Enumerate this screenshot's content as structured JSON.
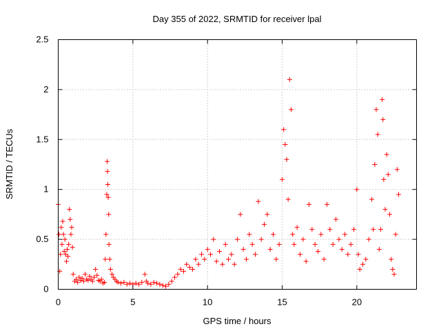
{
  "chart_data": {
    "type": "scatter",
    "title": "Day 355 of 2022, SRMTID for receiver lpal",
    "xlabel": "GPS time / hours",
    "ylabel": "SRMTID / TECUs",
    "xlim": [
      0,
      24
    ],
    "ylim": [
      0,
      2.5
    ],
    "xticks": [
      0,
      5,
      10,
      15,
      20
    ],
    "xtick_labels": [
      "0",
      "5",
      "10",
      "15",
      "20"
    ],
    "yticks": [
      0,
      0.5,
      1,
      1.5,
      2,
      2.5
    ],
    "ytick_labels": [
      "0",
      "0.5",
      "1",
      "1.5",
      "2",
      "2.5"
    ],
    "grid": true,
    "marker": "+",
    "color": "#ff0000",
    "series": [
      {
        "name": "SRMTID",
        "points": [
          [
            0.0,
            0.85
          ],
          [
            0.05,
            0.55
          ],
          [
            0.1,
            0.18
          ],
          [
            0.15,
            0.35
          ],
          [
            0.2,
            0.62
          ],
          [
            0.25,
            0.45
          ],
          [
            0.3,
            0.68
          ],
          [
            0.35,
            0.55
          ],
          [
            0.4,
            0.38
          ],
          [
            0.45,
            0.5
          ],
          [
            0.5,
            0.35
          ],
          [
            0.55,
            0.28
          ],
          [
            0.6,
            0.4
          ],
          [
            0.65,
            0.33
          ],
          [
            0.7,
            0.45
          ],
          [
            0.75,
            0.8
          ],
          [
            0.8,
            0.7
          ],
          [
            0.85,
            0.55
          ],
          [
            0.9,
            0.62
          ],
          [
            0.95,
            0.42
          ],
          [
            1.0,
            0.15
          ],
          [
            1.1,
            0.08
          ],
          [
            1.2,
            0.1
          ],
          [
            1.3,
            0.07
          ],
          [
            1.4,
            0.12
          ],
          [
            1.5,
            0.09
          ],
          [
            1.6,
            0.11
          ],
          [
            1.7,
            0.08
          ],
          [
            1.8,
            0.15
          ],
          [
            1.9,
            0.1
          ],
          [
            2.0,
            0.09
          ],
          [
            2.1,
            0.13
          ],
          [
            2.2,
            0.1
          ],
          [
            2.3,
            0.08
          ],
          [
            2.4,
            0.12
          ],
          [
            2.5,
            0.2
          ],
          [
            2.6,
            0.14
          ],
          [
            2.7,
            0.09
          ],
          [
            2.8,
            0.08
          ],
          [
            2.9,
            0.1
          ],
          [
            3.0,
            0.06
          ],
          [
            3.1,
            0.07
          ],
          [
            3.15,
            0.3
          ],
          [
            3.2,
            0.55
          ],
          [
            3.25,
            0.95
          ],
          [
            3.28,
            1.28
          ],
          [
            3.3,
            1.18
          ],
          [
            3.32,
            1.05
          ],
          [
            3.35,
            0.92
          ],
          [
            3.38,
            0.75
          ],
          [
            3.4,
            0.45
          ],
          [
            3.45,
            0.3
          ],
          [
            3.5,
            0.2
          ],
          [
            3.6,
            0.15
          ],
          [
            3.7,
            0.12
          ],
          [
            3.8,
            0.1
          ],
          [
            3.9,
            0.08
          ],
          [
            4.0,
            0.07
          ],
          [
            4.2,
            0.06
          ],
          [
            4.4,
            0.07
          ],
          [
            4.6,
            0.05
          ],
          [
            4.8,
            0.06
          ],
          [
            5.0,
            0.05
          ],
          [
            5.2,
            0.06
          ],
          [
            5.4,
            0.05
          ],
          [
            5.6,
            0.07
          ],
          [
            5.8,
            0.15
          ],
          [
            5.9,
            0.08
          ],
          [
            6.0,
            0.06
          ],
          [
            6.2,
            0.05
          ],
          [
            6.4,
            0.07
          ],
          [
            6.6,
            0.06
          ],
          [
            6.8,
            0.05
          ],
          [
            7.0,
            0.04
          ],
          [
            7.2,
            0.03
          ],
          [
            7.4,
            0.05
          ],
          [
            7.6,
            0.08
          ],
          [
            7.8,
            0.12
          ],
          [
            8.0,
            0.15
          ],
          [
            8.2,
            0.2
          ],
          [
            8.4,
            0.18
          ],
          [
            8.6,
            0.25
          ],
          [
            8.8,
            0.22
          ],
          [
            9.0,
            0.2
          ],
          [
            9.2,
            0.3
          ],
          [
            9.4,
            0.25
          ],
          [
            9.6,
            0.35
          ],
          [
            9.8,
            0.3
          ],
          [
            10.0,
            0.4
          ],
          [
            10.2,
            0.35
          ],
          [
            10.4,
            0.5
          ],
          [
            10.6,
            0.28
          ],
          [
            10.8,
            0.38
          ],
          [
            11.0,
            0.25
          ],
          [
            11.2,
            0.45
          ],
          [
            11.4,
            0.3
          ],
          [
            11.6,
            0.35
          ],
          [
            11.8,
            0.25
          ],
          [
            12.0,
            0.5
          ],
          [
            12.2,
            0.75
          ],
          [
            12.4,
            0.4
          ],
          [
            12.6,
            0.3
          ],
          [
            12.8,
            0.55
          ],
          [
            13.0,
            0.45
          ],
          [
            13.2,
            0.35
          ],
          [
            13.4,
            0.88
          ],
          [
            13.6,
            0.5
          ],
          [
            13.8,
            0.65
          ],
          [
            14.0,
            0.75
          ],
          [
            14.2,
            0.4
          ],
          [
            14.4,
            0.55
          ],
          [
            14.6,
            0.3
          ],
          [
            14.8,
            0.45
          ],
          [
            15.0,
            1.1
          ],
          [
            15.1,
            1.6
          ],
          [
            15.2,
            1.45
          ],
          [
            15.3,
            1.3
          ],
          [
            15.4,
            0.9
          ],
          [
            15.5,
            2.1
          ],
          [
            15.6,
            1.8
          ],
          [
            15.7,
            0.55
          ],
          [
            15.8,
            0.45
          ],
          [
            16.0,
            0.62
          ],
          [
            16.2,
            0.35
          ],
          [
            16.4,
            0.5
          ],
          [
            16.6,
            0.28
          ],
          [
            16.8,
            0.85
          ],
          [
            17.0,
            0.6
          ],
          [
            17.2,
            0.45
          ],
          [
            17.4,
            0.38
          ],
          [
            17.6,
            0.55
          ],
          [
            17.8,
            0.3
          ],
          [
            18.0,
            0.85
          ],
          [
            18.2,
            0.6
          ],
          [
            18.4,
            0.45
          ],
          [
            18.6,
            0.7
          ],
          [
            18.8,
            0.5
          ],
          [
            19.0,
            0.4
          ],
          [
            19.2,
            0.55
          ],
          [
            19.4,
            0.35
          ],
          [
            19.6,
            0.45
          ],
          [
            19.8,
            0.6
          ],
          [
            20.0,
            1.0
          ],
          [
            20.1,
            0.35
          ],
          [
            20.2,
            0.2
          ],
          [
            20.4,
            0.25
          ],
          [
            20.6,
            0.3
          ],
          [
            20.8,
            0.5
          ],
          [
            21.0,
            0.9
          ],
          [
            21.1,
            0.6
          ],
          [
            21.2,
            1.25
          ],
          [
            21.3,
            1.8
          ],
          [
            21.4,
            1.55
          ],
          [
            21.5,
            0.4
          ],
          [
            21.6,
            0.6
          ],
          [
            21.7,
            1.9
          ],
          [
            21.75,
            1.7
          ],
          [
            21.8,
            1.1
          ],
          [
            21.9,
            0.8
          ],
          [
            22.0,
            1.35
          ],
          [
            22.1,
            1.15
          ],
          [
            22.2,
            0.75
          ],
          [
            22.3,
            0.3
          ],
          [
            22.4,
            0.2
          ],
          [
            22.5,
            0.15
          ],
          [
            22.6,
            0.55
          ],
          [
            22.7,
            1.2
          ],
          [
            22.8,
            0.95
          ]
        ]
      }
    ]
  }
}
